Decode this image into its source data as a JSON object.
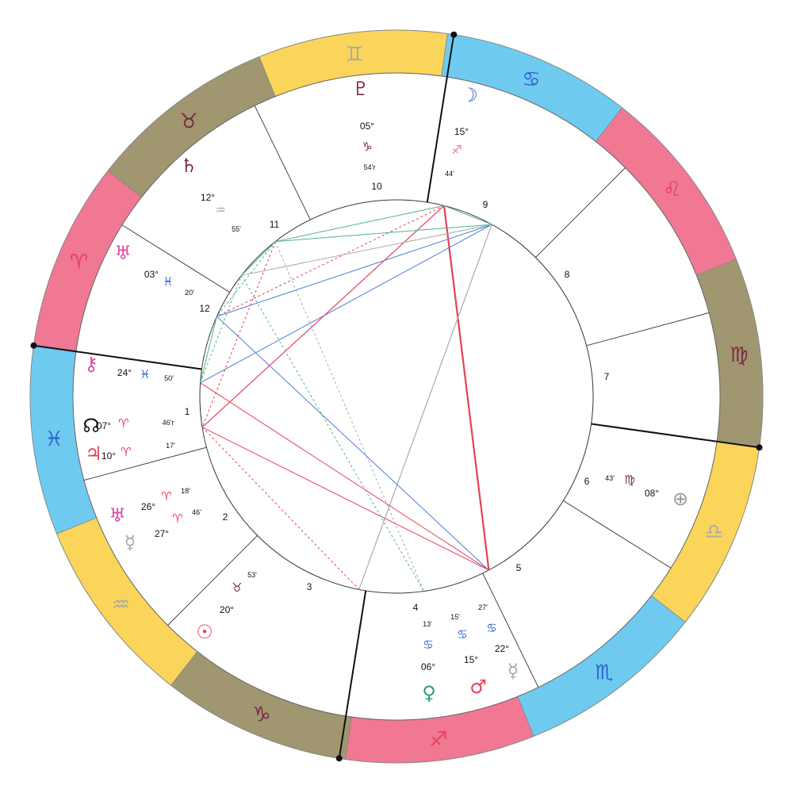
{
  "signs": [
    {
      "name": "Aries",
      "glyph": "♈",
      "color": "#f07892"
    },
    {
      "name": "Taurus",
      "glyph": "♉",
      "color": "#a09670"
    },
    {
      "name": "Gemini",
      "glyph": "♊",
      "color": "#fad55a"
    },
    {
      "name": "Cancer",
      "glyph": "♋",
      "color": "#6fcaf0"
    },
    {
      "name": "Leo",
      "glyph": "♌",
      "color": "#f07892"
    },
    {
      "name": "Virgo",
      "glyph": "♍",
      "color": "#a09670"
    },
    {
      "name": "Libra",
      "glyph": "♎",
      "color": "#fad55a"
    },
    {
      "name": "Scorpio",
      "glyph": "♏",
      "color": "#6fcaf0"
    },
    {
      "name": "Sagittarius",
      "glyph": "♐",
      "color": "#f07892"
    },
    {
      "name": "Capricorn",
      "glyph": "♑",
      "color": "#a09670"
    },
    {
      "name": "Aquarius",
      "glyph": "♒",
      "color": "#fad55a"
    },
    {
      "name": "Pisces",
      "glyph": "♓",
      "color": "#6fcaf0"
    }
  ],
  "house_numbers": [
    "1",
    "2",
    "3",
    "4",
    "5",
    "6",
    "7",
    "8",
    "9",
    "10",
    "11",
    "12"
  ],
  "planets": [
    {
      "name": "Pluto",
      "glyph": "♇",
      "color": "#7a2a45",
      "deg": "05°",
      "sign": "♑",
      "sign_color": "#7a2a45",
      "min": "54'r"
    },
    {
      "name": "Moon",
      "glyph": "☽",
      "color": "#2e63d0",
      "deg": "15°",
      "sign": "♐",
      "sign_color": "#f07892",
      "min": "44'"
    },
    {
      "name": "Saturn",
      "glyph": "♄",
      "color": "#7a2a45",
      "deg": "12°",
      "sign": "♒",
      "sign_color": "#aaaaaa",
      "min": "55'"
    },
    {
      "name": "Uranus",
      "glyph": "♅",
      "color": "#e04aa5",
      "deg": "03°",
      "sign": "♓",
      "sign_color": "#2e63d0",
      "min": "20'"
    },
    {
      "name": "Chiron",
      "glyph": "⚷",
      "color": "#e04aa5",
      "deg": "24°",
      "sign": "♓",
      "sign_color": "#2e63d0",
      "min": "50'"
    },
    {
      "name": "North Node",
      "glyph": "☊",
      "color": "#111111",
      "deg": "07°",
      "sign": "♈",
      "sign_color": "#e6405a",
      "min": "46'r"
    },
    {
      "name": "Jupiter",
      "glyph": "♃",
      "color": "#e6405a",
      "deg": "10°",
      "sign": "♈",
      "sign_color": "#e6405a",
      "min": "17'"
    },
    {
      "name": "Uranus",
      "glyph": "♅",
      "color": "#e04aa5",
      "deg": "26°",
      "sign": "♈",
      "sign_color": "#e6405a",
      "min": "18'"
    },
    {
      "name": "Mercury",
      "glyph": "☿",
      "color": "#aaaaaa",
      "deg": "27°",
      "sign": "♈",
      "sign_color": "#e6405a",
      "min": "46'"
    },
    {
      "name": "Sun",
      "glyph": "☉",
      "color": "#e6405a",
      "deg": "20°",
      "sign": "♉",
      "sign_color": "#7a2a45",
      "min": "53'"
    },
    {
      "name": "Venus",
      "glyph": "♀",
      "color": "#2aa07a",
      "deg": "06°",
      "sign": "♋",
      "sign_color": "#2e63d0",
      "min": "13'"
    },
    {
      "name": "Mars",
      "glyph": "♂",
      "color": "#e6405a",
      "deg": "15°",
      "sign": "♋",
      "sign_color": "#2e63d0",
      "min": "15'"
    },
    {
      "name": "Mercury",
      "glyph": "☿",
      "color": "#aaaaaa",
      "deg": "22°",
      "sign": "♋",
      "sign_color": "#2e63d0",
      "min": "27'"
    },
    {
      "name": "Earth",
      "glyph": "⊕",
      "color": "#999999",
      "deg": "08°",
      "sign": "♍",
      "sign_color": "#7a2a45",
      "min": "43'"
    }
  ],
  "aspect_colors": {
    "red": "#e6405a",
    "green": "#4fb58a",
    "blue": "#4a7fd8",
    "grey": "#aaaaaa"
  }
}
